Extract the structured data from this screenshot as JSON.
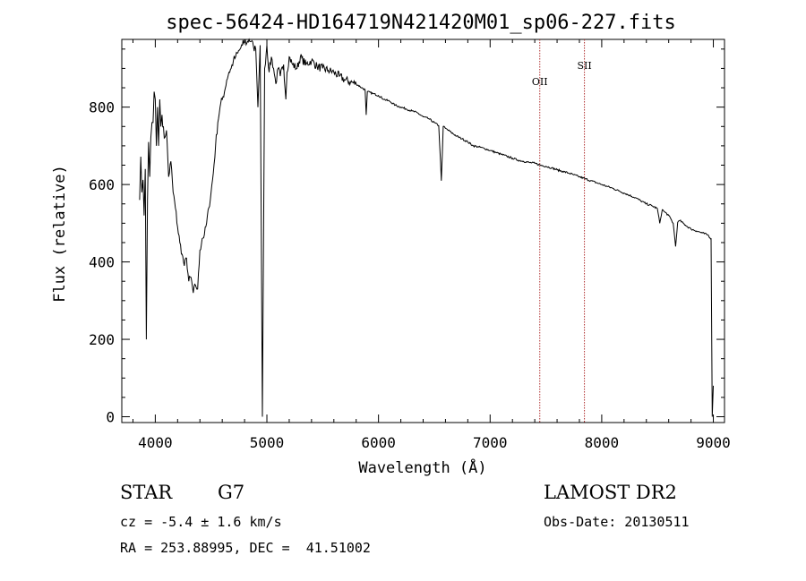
{
  "title": "spec-56424-HD164719N421420M01_sp06-227.fits",
  "chart_data": {
    "type": "line",
    "title": "spec-56424-HD164719N421420M01_sp06-227.fits",
    "xlabel": "Wavelength (Å)",
    "ylabel": "Flux (relative)",
    "xlim": [
      3700,
      9100
    ],
    "ylim": [
      -15,
      975
    ],
    "x_ticks": [
      4000,
      5000,
      6000,
      7000,
      8000,
      9000
    ],
    "y_ticks": [
      0,
      200,
      400,
      600,
      800
    ],
    "grid": false,
    "series": [
      {
        "x": [
          3860,
          3870,
          3880,
          3890,
          3900,
          3910,
          3920,
          3930,
          3940,
          3950,
          3960,
          3970,
          3980,
          3990,
          4000,
          4010,
          4020,
          4030,
          4040,
          4050,
          4060,
          4080,
          4100,
          4120,
          4140,
          4160,
          4180,
          4200,
          4220,
          4240,
          4260,
          4280,
          4300,
          4320,
          4340,
          4360,
          4380,
          4400,
          4420,
          4440,
          4460,
          4480,
          4500,
          4520,
          4540,
          4560,
          4580,
          4600,
          4620,
          4640,
          4660,
          4680,
          4700,
          4720,
          4740,
          4760,
          4780,
          4800,
          4820,
          4840,
          4860,
          4880,
          4900,
          4920,
          4940,
          4960,
          4980,
          5000,
          5020,
          5040,
          5060,
          5080,
          5100,
          5120,
          5150,
          5170,
          5180,
          5200,
          5230,
          5270,
          5300,
          5350,
          5400,
          5450,
          5500,
          5550,
          5600,
          5650,
          5700,
          5750,
          5800,
          5850,
          5880,
          5890,
          5900,
          5950,
          6000,
          6050,
          6100,
          6150,
          6200,
          6250,
          6300,
          6350,
          6400,
          6450,
          6500,
          6540,
          6563,
          6580,
          6600,
          6650,
          6700,
          6750,
          6800,
          6850,
          6900,
          6950,
          7000,
          7050,
          7100,
          7150,
          7200,
          7250,
          7300,
          7350,
          7400,
          7450,
          7500,
          7550,
          7600,
          7650,
          7700,
          7750,
          7800,
          7850,
          7900,
          7950,
          8000,
          8050,
          8100,
          8150,
          8200,
          8250,
          8300,
          8350,
          8400,
          8450,
          8498,
          8520,
          8542,
          8560,
          8600,
          8640,
          8662,
          8680,
          8700,
          8750,
          8800,
          8850,
          8900,
          8950,
          8980,
          8990,
          9000
        ],
        "y": [
          560,
          672,
          580,
          612,
          520,
          640,
          200,
          560,
          710,
          620,
          720,
          760,
          760,
          840,
          820,
          700,
          800,
          700,
          820,
          750,
          780,
          720,
          740,
          620,
          660,
          580,
          540,
          490,
          450,
          420,
          390,
          410,
          350,
          360,
          320,
          340,
          330,
          430,
          460,
          470,
          500,
          540,
          580,
          630,
          700,
          760,
          800,
          820,
          840,
          870,
          890,
          900,
          920,
          930,
          940,
          950,
          960,
          970,
          965,
          975,
          970,
          955,
          950,
          800,
          960,
          0,
          900,
          960,
          890,
          930,
          900,
          860,
          900,
          880,
          910,
          820,
          890,
          930,
          910,
          900,
          930,
          910,
          920,
          905,
          900,
          895,
          890,
          880,
          870,
          865,
          860,
          850,
          845,
          780,
          840,
          835,
          830,
          820,
          815,
          805,
          800,
          795,
          790,
          785,
          775,
          770,
          760,
          752,
          610,
          750,
          745,
          735,
          725,
          718,
          710,
          700,
          697,
          693,
          688,
          683,
          678,
          673,
          668,
          663,
          660,
          657,
          655,
          650,
          647,
          643,
          638,
          634,
          630,
          625,
          620,
          615,
          610,
          605,
          600,
          595,
          590,
          584,
          578,
          572,
          566,
          558,
          550,
          545,
          538,
          500,
          535,
          530,
          520,
          500,
          440,
          502,
          507,
          495,
          485,
          480,
          475,
          470,
          460,
          0,
          80
        ]
      }
    ],
    "annotations": [
      {
        "label": "OII",
        "wavelength": 7445
      },
      {
        "label": "SII",
        "wavelength": 7845
      }
    ]
  },
  "info": {
    "object_type": "STAR",
    "subclass": "G7",
    "survey": "LAMOST DR2",
    "cz": "cz = -5.4 ± 1.6 km/s",
    "obs_date": "Obs-Date: 20130511",
    "coords": "RA = 253.88995, DEC =  41.51002"
  }
}
